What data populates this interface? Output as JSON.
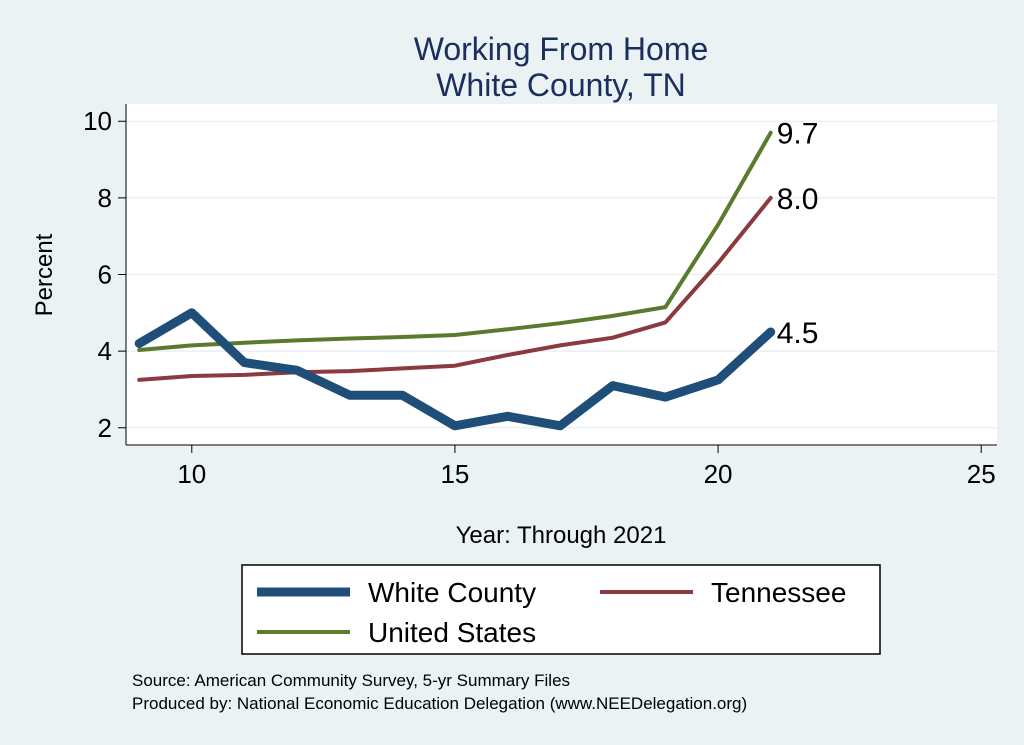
{
  "chart_data": {
    "type": "line",
    "title": [
      "Working From Home",
      "White County, TN"
    ],
    "xlabel": "Year: Through 2021",
    "ylabel": "Percent",
    "xlim": [
      8.75,
      25.3
    ],
    "ylim": [
      1.55,
      10.45
    ],
    "xticks": [
      10,
      15,
      20,
      25
    ],
    "yticks": [
      2,
      4,
      6,
      8,
      10
    ],
    "grid": "horizontal",
    "x": [
      9,
      10,
      11,
      12,
      13,
      14,
      15,
      16,
      17,
      18,
      19,
      20,
      21
    ],
    "series": [
      {
        "name": "White County",
        "color": "#1f4e79",
        "width": 9,
        "values": [
          4.2,
          5.0,
          3.7,
          3.5,
          2.85,
          2.85,
          2.05,
          2.3,
          2.05,
          3.1,
          2.8,
          3.25,
          4.5
        ],
        "end_label": "4.5"
      },
      {
        "name": "Tennessee",
        "color": "#8b3a3f",
        "width": 4,
        "values": [
          3.25,
          3.35,
          3.38,
          3.45,
          3.48,
          3.55,
          3.62,
          3.9,
          4.15,
          4.35,
          4.75,
          6.3,
          8.0
        ],
        "end_label": "8.0"
      },
      {
        "name": "United States",
        "color": "#5a7a2e",
        "width": 4,
        "values": [
          4.03,
          4.15,
          4.22,
          4.28,
          4.33,
          4.37,
          4.42,
          4.57,
          4.73,
          4.92,
          5.15,
          7.3,
          9.7
        ],
        "end_label": "9.7"
      }
    ],
    "legend": {
      "placement": "bottom",
      "entries": [
        "White County",
        "Tennessee",
        "United States"
      ]
    },
    "source_lines": [
      "Source: American Community Survey, 5-yr Summary Files",
      "Produced by: National Economic Education Delegation (www.NEEDelegation.org)"
    ]
  }
}
